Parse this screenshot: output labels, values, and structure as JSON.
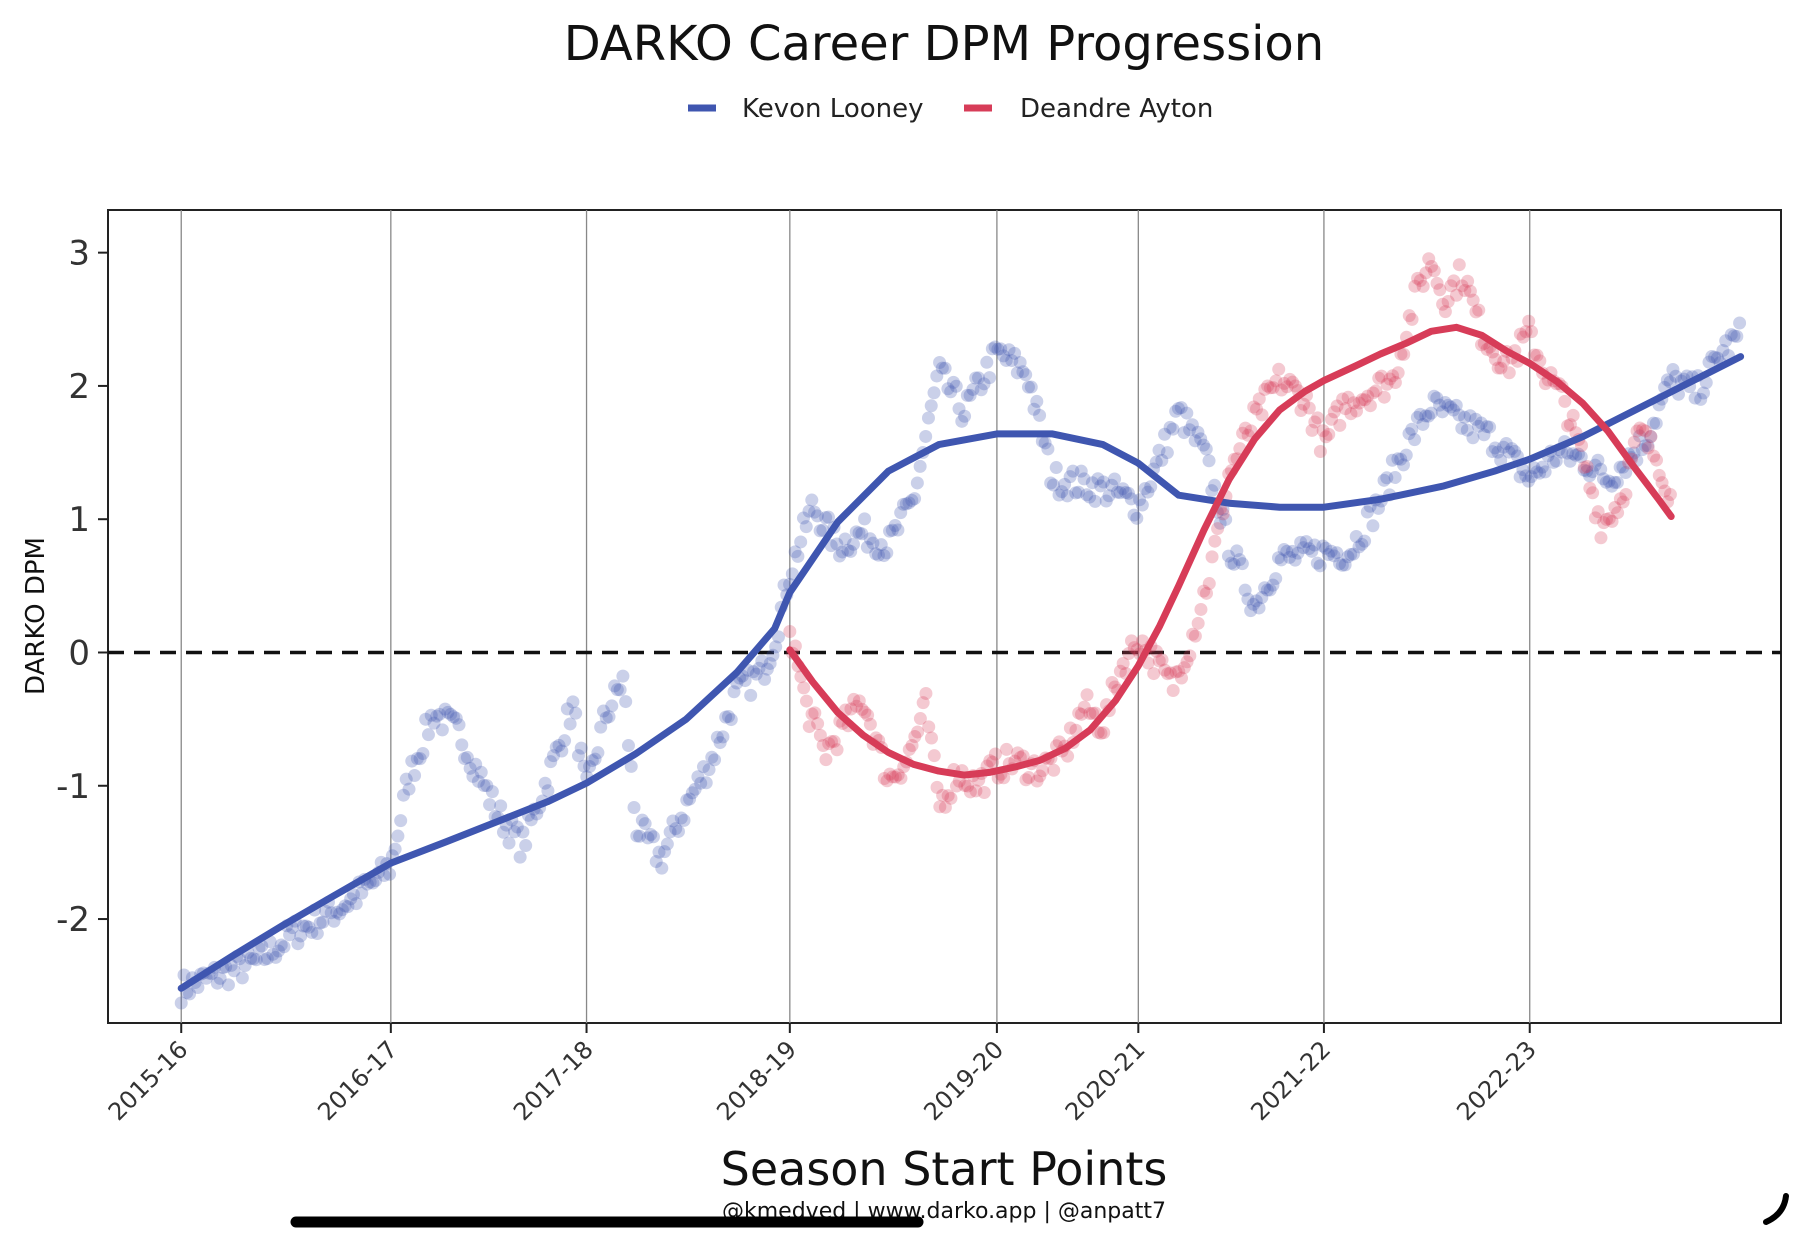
{
  "chart_data": {
    "type": "scatter",
    "title": "DARKO Career DPM Progression",
    "xlabel": "Season Start Points",
    "ylabel": "DARKO DPM",
    "credit": "@kmedved | www.darko.app | @anpatt7",
    "x_ticks": [
      "2015-16",
      "2016-17",
      "2017-18",
      "2018-19",
      "2019-20",
      "2020-21",
      "2021-22",
      "2022-23"
    ],
    "x_tick_positions": [
      0,
      166,
      321,
      482,
      646,
      758,
      905,
      1068
    ],
    "xlim": [
      -58,
      1267
    ],
    "ylim": [
      -2.78,
      3.32
    ],
    "y_ticks": [
      -2,
      -1,
      0,
      1,
      2,
      3
    ],
    "y_tick_labels": [
      "-2",
      "-1",
      "0",
      "1",
      "2",
      "3"
    ],
    "reference_line_y": 0,
    "grid": "vertical at season starts",
    "legend_position": "top-center",
    "series": [
      {
        "name": "Kevon Looney",
        "color": "#3f56b0",
        "smooth": [
          [
            0,
            -2.52
          ],
          [
            40,
            -2.28
          ],
          [
            80,
            -2.05
          ],
          [
            120,
            -1.83
          ],
          [
            166,
            -1.58
          ],
          [
            210,
            -1.42
          ],
          [
            250,
            -1.27
          ],
          [
            290,
            -1.12
          ],
          [
            321,
            -0.98
          ],
          [
            360,
            -0.76
          ],
          [
            400,
            -0.5
          ],
          [
            440,
            -0.15
          ],
          [
            470,
            0.18
          ],
          [
            482,
            0.45
          ],
          [
            520,
            0.98
          ],
          [
            560,
            1.36
          ],
          [
            600,
            1.56
          ],
          [
            646,
            1.64
          ],
          [
            690,
            1.64
          ],
          [
            730,
            1.56
          ],
          [
            758,
            1.42
          ],
          [
            790,
            1.18
          ],
          [
            830,
            1.12
          ],
          [
            870,
            1.09
          ],
          [
            905,
            1.09
          ],
          [
            950,
            1.15
          ],
          [
            1000,
            1.25
          ],
          [
            1040,
            1.36
          ],
          [
            1068,
            1.45
          ],
          [
            1110,
            1.62
          ],
          [
            1160,
            1.86
          ],
          [
            1210,
            2.1
          ],
          [
            1235,
            2.22
          ]
        ],
        "points_anchor": [
          [
            0,
            -2.52
          ],
          [
            30,
            -2.42
          ],
          [
            60,
            -2.32
          ],
          [
            90,
            -2.1
          ],
          [
            120,
            -1.95
          ],
          [
            150,
            -1.75
          ],
          [
            166,
            -1.6
          ],
          [
            180,
            -0.95
          ],
          [
            200,
            -0.45
          ],
          [
            220,
            -0.6
          ],
          [
            250,
            -1.2
          ],
          [
            270,
            -1.45
          ],
          [
            290,
            -0.95
          ],
          [
            310,
            -0.4
          ],
          [
            321,
            -1.05
          ],
          [
            335,
            -0.5
          ],
          [
            350,
            -0.2
          ],
          [
            360,
            -1.3
          ],
          [
            380,
            -1.55
          ],
          [
            400,
            -1.15
          ],
          [
            420,
            -0.8
          ],
          [
            440,
            -0.3
          ],
          [
            460,
            -0.15
          ],
          [
            470,
            0.1
          ],
          [
            482,
            0.6
          ],
          [
            500,
            1.1
          ],
          [
            520,
            0.8
          ],
          [
            540,
            0.9
          ],
          [
            560,
            0.8
          ],
          [
            580,
            1.15
          ],
          [
            600,
            2.1
          ],
          [
            620,
            1.8
          ],
          [
            646,
            2.25
          ],
          [
            670,
            2.1
          ],
          [
            690,
            1.3
          ],
          [
            720,
            1.25
          ],
          [
            740,
            1.2
          ],
          [
            758,
            1.1
          ],
          [
            770,
            1.35
          ],
          [
            790,
            1.8
          ],
          [
            810,
            1.5
          ],
          [
            830,
            0.8
          ],
          [
            850,
            0.35
          ],
          [
            870,
            0.7
          ],
          [
            905,
            0.75
          ],
          [
            925,
            0.75
          ],
          [
            950,
            1.15
          ],
          [
            970,
            1.55
          ],
          [
            990,
            1.85
          ],
          [
            1010,
            1.75
          ],
          [
            1040,
            1.6
          ],
          [
            1068,
            1.3
          ],
          [
            1090,
            1.5
          ],
          [
            1110,
            1.45
          ],
          [
            1130,
            1.3
          ],
          [
            1160,
            1.6
          ],
          [
            1180,
            2.05
          ],
          [
            1200,
            1.95
          ],
          [
            1220,
            2.25
          ],
          [
            1235,
            2.38
          ]
        ]
      },
      {
        "name": "Deandre Ayton",
        "color": "#d73c58",
        "smooth": [
          [
            482,
            0.02
          ],
          [
            500,
            -0.22
          ],
          [
            520,
            -0.45
          ],
          [
            540,
            -0.62
          ],
          [
            560,
            -0.75
          ],
          [
            580,
            -0.84
          ],
          [
            600,
            -0.89
          ],
          [
            620,
            -0.92
          ],
          [
            640,
            -0.9
          ],
          [
            660,
            -0.86
          ],
          [
            680,
            -0.81
          ],
          [
            700,
            -0.72
          ],
          [
            720,
            -0.58
          ],
          [
            740,
            -0.36
          ],
          [
            758,
            -0.1
          ],
          [
            775,
            0.2
          ],
          [
            790,
            0.5
          ],
          [
            810,
            0.92
          ],
          [
            830,
            1.3
          ],
          [
            850,
            1.6
          ],
          [
            870,
            1.82
          ],
          [
            890,
            1.96
          ],
          [
            905,
            2.04
          ],
          [
            930,
            2.15
          ],
          [
            950,
            2.24
          ],
          [
            970,
            2.32
          ],
          [
            990,
            2.41
          ],
          [
            1010,
            2.44
          ],
          [
            1030,
            2.38
          ],
          [
            1050,
            2.26
          ],
          [
            1068,
            2.17
          ],
          [
            1090,
            2.03
          ],
          [
            1110,
            1.87
          ],
          [
            1130,
            1.66
          ],
          [
            1150,
            1.4
          ],
          [
            1170,
            1.15
          ],
          [
            1180,
            1.02
          ]
        ],
        "points_anchor": [
          [
            482,
            0.2
          ],
          [
            495,
            -0.4
          ],
          [
            510,
            -0.75
          ],
          [
            525,
            -0.55
          ],
          [
            540,
            -0.35
          ],
          [
            560,
            -0.95
          ],
          [
            575,
            -0.8
          ],
          [
            590,
            -0.4
          ],
          [
            600,
            -1.15
          ],
          [
            615,
            -0.9
          ],
          [
            630,
            -1.0
          ],
          [
            646,
            -0.85
          ],
          [
            660,
            -0.82
          ],
          [
            680,
            -0.88
          ],
          [
            700,
            -0.75
          ],
          [
            715,
            -0.4
          ],
          [
            730,
            -0.55
          ],
          [
            745,
            -0.1
          ],
          [
            758,
            0.1
          ],
          [
            770,
            -0.05
          ],
          [
            785,
            -0.25
          ],
          [
            800,
            0.1
          ],
          [
            815,
            0.6
          ],
          [
            830,
            1.35
          ],
          [
            850,
            1.75
          ],
          [
            870,
            2.05
          ],
          [
            890,
            1.9
          ],
          [
            905,
            1.55
          ],
          [
            920,
            1.85
          ],
          [
            940,
            1.95
          ],
          [
            960,
            2.05
          ],
          [
            980,
            2.75
          ],
          [
            990,
            2.95
          ],
          [
            1000,
            2.65
          ],
          [
            1015,
            2.85
          ],
          [
            1030,
            2.4
          ],
          [
            1050,
            2.15
          ],
          [
            1068,
            2.4
          ],
          [
            1080,
            2.1
          ],
          [
            1095,
            1.9
          ],
          [
            1110,
            1.45
          ],
          [
            1125,
            0.95
          ],
          [
            1140,
            1.15
          ],
          [
            1155,
            1.65
          ],
          [
            1170,
            1.45
          ],
          [
            1180,
            1.15
          ]
        ]
      }
    ]
  }
}
